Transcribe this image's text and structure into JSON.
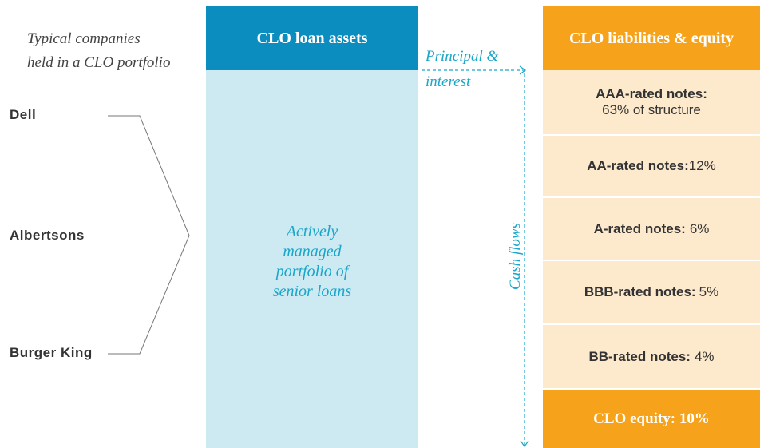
{
  "caption": [
    "Typical companies",
    "held in a CLO portfolio"
  ],
  "companies": [
    "Dell",
    "Albertsons",
    "Burger King"
  ],
  "assets": {
    "title": "CLO loan assets",
    "body": [
      "Actively",
      "managed",
      "portfolio of",
      "senior loans"
    ]
  },
  "flow": {
    "label": [
      "Principal &",
      "interest"
    ],
    "vertical": "Cash flows"
  },
  "liabilities": {
    "title": "CLO liabilities & equity",
    "rows": [
      {
        "label": "AAA-rated notes:",
        "value": "63% of structure"
      },
      {
        "label": "AA-rated notes:",
        "value": "12%"
      },
      {
        "label": "A-rated notes:",
        "value": "6%"
      },
      {
        "label": "BBB-rated notes:",
        "value": "5%"
      },
      {
        "label": "BB-rated notes:",
        "value": "4%"
      }
    ],
    "equity": "CLO equity: 10%"
  }
}
